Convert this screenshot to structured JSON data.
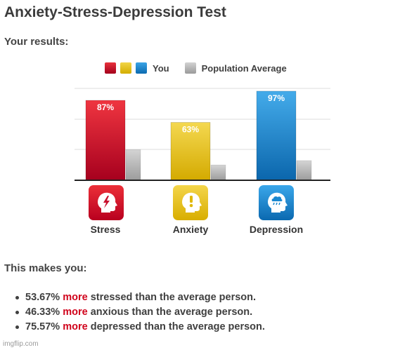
{
  "page": {
    "title": "Anxiety-Stress-Depression Test",
    "subtitle": "Your results:",
    "makes_you": "This makes you:",
    "watermark": "imgflip.com"
  },
  "legend": {
    "you_label": "You",
    "population_label": "Population Average"
  },
  "colors": {
    "stress": "#c8102e",
    "anxiety": "#e8c21a",
    "depression": "#1b88d0",
    "population": "#b5b5b5",
    "more": "#d0021b"
  },
  "chart_data": {
    "type": "bar",
    "categories": [
      "Stress",
      "Anxiety",
      "Depression"
    ],
    "series": [
      {
        "name": "You",
        "values": [
          87,
          63,
          97
        ],
        "labels": [
          "87%",
          "63%",
          "97%"
        ]
      },
      {
        "name": "Population Average",
        "values": [
          33.33,
          16.67,
          21.43
        ]
      }
    ],
    "ylim": [
      0,
      100
    ],
    "grid": true,
    "legend_position": "top"
  },
  "icons": [
    "head-lightning-icon",
    "head-exclamation-icon",
    "head-rain-cloud-icon"
  ],
  "results": [
    {
      "value": "53.67%",
      "more": "more",
      "text": "stressed than the average person."
    },
    {
      "value": "46.33%",
      "more": "more",
      "text": "anxious than the average person."
    },
    {
      "value": "75.57%",
      "more": "more",
      "text": "depressed than the average person."
    }
  ]
}
